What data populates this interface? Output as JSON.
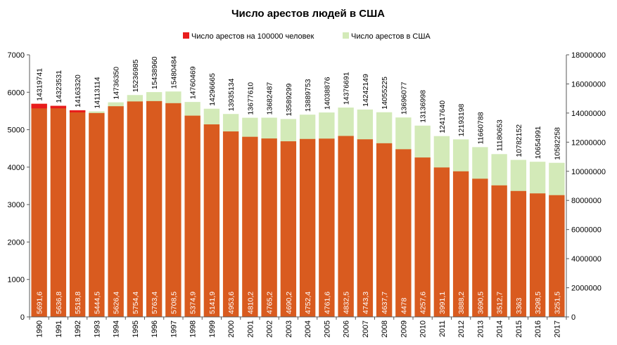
{
  "chart_data": {
    "type": "bar",
    "title": "Число арестов людей в США",
    "categories": [
      "1990",
      "1991",
      "1992",
      "1993",
      "1994",
      "1995",
      "1996",
      "1997",
      "1998",
      "1999",
      "2000",
      "2001",
      "2002",
      "2003",
      "2004",
      "2005",
      "2006",
      "2007",
      "2008",
      "2009",
      "2010",
      "2011",
      "2012",
      "2013",
      "2014",
      "2015",
      "2016",
      "2017"
    ],
    "series": [
      {
        "name": "Число арестов на 100000 человек",
        "axis": "left",
        "color": "#d95b1f",
        "highlight_color": "#e81c1c",
        "values": [
          5691.6,
          5636.8,
          5518.8,
          5444.5,
          5626.4,
          5754.4,
          5763.4,
          5708.5,
          5374.9,
          5141.9,
          4953.6,
          4810.2,
          4765.2,
          4690.2,
          4752.4,
          4761.6,
          4832.5,
          4743.3,
          4637.7,
          4478,
          4257.6,
          3991.1,
          3888.2,
          3690.5,
          3512.7,
          3363,
          3298.5,
          3251.5
        ],
        "labels": [
          "5691,6",
          "5636,8",
          "5518,8",
          "5444,5",
          "5626,4",
          "5754,4",
          "5763,4",
          "5708,5",
          "5374,9",
          "5141,9",
          "4953,6",
          "4810,2",
          "4765,2",
          "4690,2",
          "4752,4",
          "4761,6",
          "4832,5",
          "4743,3",
          "4637,7",
          "4478",
          "4257,6",
          "3991,1",
          "3888,2",
          "3690,5",
          "3512,7",
          "3363",
          "3298,5",
          "3251,5"
        ]
      },
      {
        "name": "Число арестов в США",
        "axis": "right",
        "color": "#d3eab8",
        "values": [
          14319741,
          14323531,
          14163320,
          14113114,
          14736350,
          15236985,
          15438960,
          15480484,
          14760469,
          14296665,
          13935134,
          13677610,
          13682487,
          13589299,
          13889753,
          14038876,
          14376691,
          14242149,
          14055225,
          13696077,
          13136998,
          12417640,
          12193198,
          11660788,
          11180653,
          10782152,
          10654991,
          10582258
        ],
        "labels": [
          "14319741",
          "14323531",
          "14163320",
          "14113114",
          "14736350",
          "15236985",
          "15438960",
          "15480484",
          "14760469",
          "14296665",
          "13935134",
          "13677610",
          "13682487",
          "13589299",
          "13889753",
          "14038876",
          "14376691",
          "14242149",
          "14055225",
          "13696077",
          "13136998",
          "12417640",
          "12193198",
          "11660788",
          "11180653",
          "10782152",
          "10654991",
          "10582258"
        ]
      }
    ],
    "y_left": {
      "min": 0,
      "max": 7000,
      "ticks": [
        "0",
        "1000",
        "2000",
        "3000",
        "4000",
        "5000",
        "6000",
        "7000"
      ]
    },
    "y_right": {
      "min": 0,
      "max": 18000000,
      "ticks": [
        "0",
        "2000000",
        "4000000",
        "6000000",
        "8000000",
        "10000000",
        "12000000",
        "14000000",
        "16000000",
        "18000000"
      ]
    },
    "legend": "top-center",
    "grid": false,
    "axis_color": "#595959"
  }
}
